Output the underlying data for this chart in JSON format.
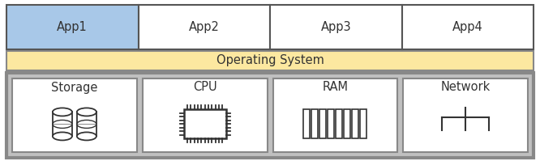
{
  "bg_color": "#ffffff",
  "outer_border_color": "#888888",
  "app_box_color": "#ffffff",
  "app1_fill": "#a8c8e8",
  "app_border_color": "#555555",
  "app_labels": [
    "App1",
    "App2",
    "App3",
    "App4"
  ],
  "os_fill": "#fce8a0",
  "os_label": "Operating System",
  "hw_fill": "#c0c0c0",
  "hw_box_fill": "#ffffff",
  "hw_labels": [
    "Storage",
    "CPU",
    "RAM",
    "Network"
  ],
  "text_color": "#333333",
  "font_size": 10.5
}
